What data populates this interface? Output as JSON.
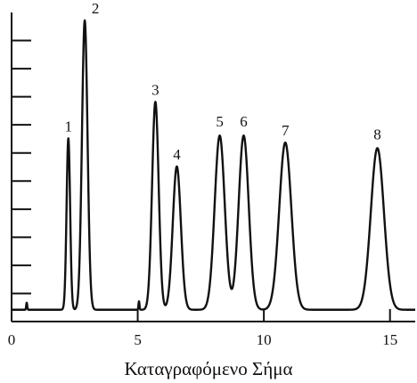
{
  "chart_data": {
    "type": "line",
    "title": "",
    "xlabel": "Καταγραφόμενο Σήμα",
    "ylabel": "",
    "xlim": [
      0,
      16
    ],
    "ylim": [
      0,
      11
    ],
    "x_ticks": [
      "0",
      "5",
      "10",
      "15"
    ],
    "y_tick_values": [
      1,
      2,
      3,
      4,
      5,
      6,
      7,
      8,
      9,
      10
    ],
    "grid": false,
    "legend": "none",
    "baseline": 0.42,
    "peaks": [
      {
        "label": "1",
        "x": 2.25,
        "height": 6.1
      },
      {
        "label": "2",
        "x": 2.9,
        "height": 10.3
      },
      {
        "label": "3",
        "x": 5.7,
        "height": 7.4
      },
      {
        "label": "4",
        "x": 6.55,
        "height": 5.1
      },
      {
        "label": "5",
        "x": 8.25,
        "height": 6.2
      },
      {
        "label": "6",
        "x": 9.2,
        "height": 6.2
      },
      {
        "label": "7",
        "x": 10.85,
        "height": 5.95
      },
      {
        "label": "8",
        "x": 14.5,
        "height": 5.75
      }
    ]
  }
}
